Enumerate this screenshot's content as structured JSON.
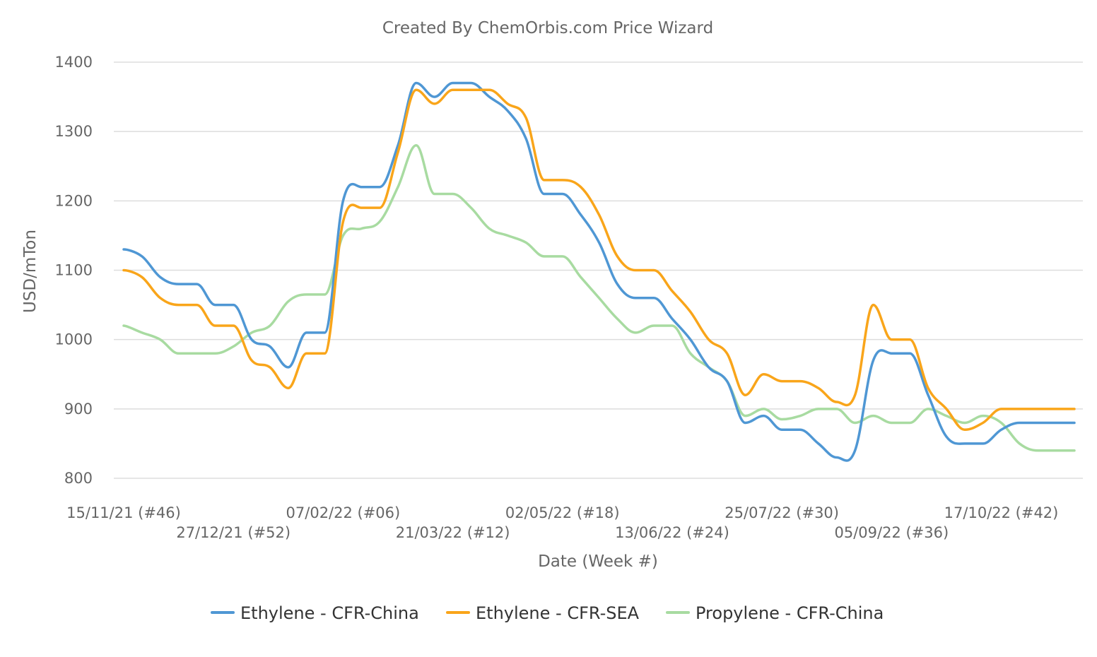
{
  "chart_data": {
    "type": "line",
    "title": "Created By ChemOrbis.com Price Wizard",
    "xlabel": "Date (Week #)",
    "ylabel": "USD/mTon",
    "ylim": [
      800,
      1400
    ],
    "yticks": [
      800,
      900,
      1000,
      1100,
      1200,
      1300,
      1400
    ],
    "grid": true,
    "legend_position": "bottom",
    "x_tick_labels": [
      {
        "week": 0,
        "label": "15/11/21 (#46)"
      },
      {
        "week": 6,
        "label": "27/12/21 (#52)"
      },
      {
        "week": 12,
        "label": "07/02/22 (#06)"
      },
      {
        "week": 18,
        "label": "21/03/22 (#12)"
      },
      {
        "week": 24,
        "label": "02/05/22 (#18)"
      },
      {
        "week": 30,
        "label": "13/06/22 (#24)"
      },
      {
        "week": 36,
        "label": "25/07/22 (#30)"
      },
      {
        "week": 42,
        "label": "05/09/22 (#36)"
      },
      {
        "week": 48,
        "label": "17/10/22 (#42)"
      }
    ],
    "x": [
      0,
      1,
      2,
      3,
      4,
      5,
      6,
      7,
      8,
      9,
      10,
      11,
      12,
      13,
      14,
      15,
      16,
      17,
      18,
      19,
      20,
      21,
      22,
      23,
      24,
      25,
      26,
      27,
      28,
      29,
      30,
      31,
      32,
      33,
      34,
      35,
      36,
      37,
      38,
      39,
      40,
      41,
      42,
      43,
      44,
      45,
      46,
      47,
      48,
      49,
      50,
      51,
      52
    ],
    "series": [
      {
        "name": "Ethylene - CFR-China",
        "color": "#4f97d4",
        "values": [
          1130,
          1120,
          1090,
          1080,
          1080,
          1050,
          1050,
          1000,
          990,
          960,
          1010,
          1010,
          1200,
          1220,
          1220,
          1280,
          1370,
          1350,
          1370,
          1370,
          1350,
          1330,
          1290,
          1210,
          1210,
          1180,
          1140,
          1080,
          1060,
          1060,
          1030,
          1000,
          960,
          940,
          880,
          890,
          870,
          870,
          850,
          830,
          840,
          970,
          980,
          980,
          920,
          860,
          850,
          850,
          870,
          880,
          880,
          880,
          880
        ]
      },
      {
        "name": "Ethylene - CFR-SEA",
        "color": "#f9a51a",
        "values": [
          1100,
          1090,
          1060,
          1050,
          1050,
          1020,
          1020,
          970,
          960,
          930,
          980,
          980,
          1170,
          1190,
          1190,
          1270,
          1360,
          1340,
          1360,
          1360,
          1360,
          1340,
          1320,
          1230,
          1230,
          1220,
          1180,
          1120,
          1100,
          1100,
          1070,
          1040,
          1000,
          980,
          920,
          950,
          940,
          940,
          930,
          910,
          920,
          1050,
          1000,
          1000,
          930,
          900,
          870,
          880,
          900,
          900,
          900,
          900,
          900
        ]
      },
      {
        "name": "Propylene - CFR-China",
        "color": "#a8dba1",
        "values": [
          1020,
          1010,
          1000,
          980,
          980,
          980,
          990,
          1010,
          1020,
          1055,
          1065,
          1065,
          1150,
          1160,
          1170,
          1220,
          1280,
          1210,
          1210,
          1190,
          1160,
          1150,
          1140,
          1120,
          1120,
          1090,
          1060,
          1030,
          1010,
          1020,
          1020,
          980,
          960,
          940,
          890,
          900,
          885,
          890,
          900,
          900,
          880,
          890,
          880,
          880,
          900,
          890,
          880,
          890,
          880,
          850,
          840,
          840,
          840
        ]
      }
    ]
  }
}
